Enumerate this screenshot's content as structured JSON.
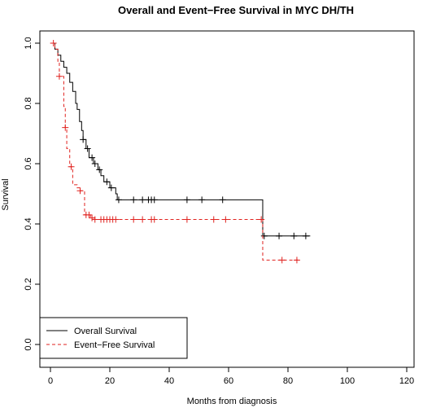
{
  "chart_data": {
    "type": "line",
    "title": "Overall and Event−Free Survival in MYC DH/TH",
    "xlabel": "Months from diagnosis",
    "ylabel": "Survival",
    "xlim": [
      0,
      120
    ],
    "ylim": [
      0,
      1
    ],
    "x_ticks": [
      0,
      20,
      40,
      60,
      80,
      100,
      120
    ],
    "y_ticks": [
      0.0,
      0.2,
      0.4,
      0.6,
      0.8,
      1.0
    ],
    "grid": false,
    "legend_position": "bottom-left",
    "series": [
      {
        "name": "Overall Survival",
        "color": "#000000",
        "dashed": false,
        "steps": [
          [
            0,
            1.0
          ],
          [
            1.5,
            0.98
          ],
          [
            2.5,
            0.96
          ],
          [
            3.5,
            0.94
          ],
          [
            4.5,
            0.92
          ],
          [
            5.5,
            0.9
          ],
          [
            6.5,
            0.87
          ],
          [
            7.5,
            0.84
          ],
          [
            8.5,
            0.8
          ],
          [
            9,
            0.78
          ],
          [
            9.8,
            0.74
          ],
          [
            10.5,
            0.71
          ],
          [
            11,
            0.68
          ],
          [
            12,
            0.65
          ],
          [
            13,
            0.62
          ],
          [
            14.5,
            0.6
          ],
          [
            16,
            0.58
          ],
          [
            17,
            0.56
          ],
          [
            18,
            0.54
          ],
          [
            20,
            0.52
          ],
          [
            22,
            0.5
          ],
          [
            22.5,
            0.48
          ],
          [
            71.5,
            0.36
          ],
          [
            87.5,
            0.36
          ]
        ],
        "censor_x": [
          11,
          12.5,
          14,
          15,
          16.5,
          19,
          20.5,
          23,
          28,
          31,
          33,
          34,
          35,
          46,
          51,
          58,
          72,
          77,
          82,
          86
        ]
      },
      {
        "name": "Event−Free Survival",
        "color": "#e0221f",
        "dashed": true,
        "steps": [
          [
            0,
            1.0
          ],
          [
            1.5,
            0.98
          ],
          [
            2.5,
            0.94
          ],
          [
            3,
            0.89
          ],
          [
            4.5,
            0.79
          ],
          [
            5,
            0.72
          ],
          [
            5.5,
            0.65
          ],
          [
            6.5,
            0.59
          ],
          [
            7.5,
            0.53
          ],
          [
            9,
            0.52
          ],
          [
            10,
            0.51
          ],
          [
            11.5,
            0.43
          ],
          [
            13.5,
            0.42
          ],
          [
            15,
            0.415
          ],
          [
            71.5,
            0.28
          ],
          [
            83.5,
            0.28
          ]
        ],
        "censor_x": [
          1,
          3,
          5,
          7,
          10,
          12,
          13,
          14,
          15,
          17,
          18,
          19,
          20,
          21,
          22,
          28,
          31,
          34,
          35,
          46,
          55,
          59,
          71,
          78,
          83
        ]
      }
    ]
  }
}
